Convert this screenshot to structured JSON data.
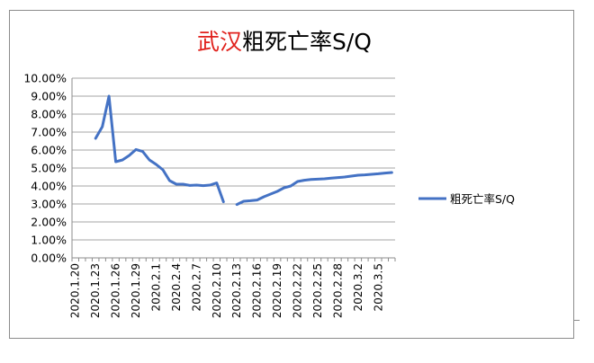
{
  "chart_data": {
    "type": "line",
    "title_red": "武汉",
    "title_rest": "粗死亡率S/Q",
    "xlabel": "",
    "ylabel": "",
    "ylim": [
      0,
      0.1
    ],
    "y_ticks": [
      "0.00%",
      "1.00%",
      "2.00%",
      "3.00%",
      "4.00%",
      "5.00%",
      "6.00%",
      "7.00%",
      "8.00%",
      "9.00%",
      "10.00%"
    ],
    "x_tick_labels": [
      "2020.1.20",
      "2020.1.23",
      "2020.1.26",
      "2020.1.29",
      "2020.2.1",
      "2020.2.4",
      "2020.2.7",
      "2020.2.10",
      "2020.2.13",
      "2020.2.16",
      "2020.2.19",
      "2020.2.22",
      "2020.2.25",
      "2020.2.28",
      "2020.3.2",
      "2020.3.5"
    ],
    "x_start": "2020-01-20",
    "grid": true,
    "legend_position": "right",
    "series": [
      {
        "name": "粗死亡率S/Q",
        "color": "#4472c4",
        "segments": [
          [
            [
              "2020-01-23",
              0.0665
            ],
            [
              "2020-01-24",
              0.073
            ],
            [
              "2020-01-25",
              0.09
            ],
            [
              "2020-01-26",
              0.0535
            ],
            [
              "2020-01-27",
              0.0545
            ],
            [
              "2020-01-28",
              0.057
            ],
            [
              "2020-01-29",
              0.0603
            ],
            [
              "2020-01-30",
              0.0592
            ],
            [
              "2020-01-31",
              0.0545
            ],
            [
              "2020-02-01",
              0.052
            ],
            [
              "2020-02-02",
              0.049
            ],
            [
              "2020-02-03",
              0.043
            ],
            [
              "2020-02-04",
              0.041
            ],
            [
              "2020-02-05",
              0.041
            ],
            [
              "2020-02-06",
              0.0403
            ],
            [
              "2020-02-07",
              0.0405
            ],
            [
              "2020-02-08",
              0.0402
            ],
            [
              "2020-02-09",
              0.0405
            ],
            [
              "2020-02-10",
              0.0417
            ],
            [
              "2020-02-11",
              0.0312
            ]
          ],
          [
            [
              "2020-02-13",
              0.0297
            ],
            [
              "2020-02-14",
              0.0315
            ],
            [
              "2020-02-15",
              0.0318
            ],
            [
              "2020-02-16",
              0.0322
            ],
            [
              "2020-02-17",
              0.034
            ],
            [
              "2020-02-18",
              0.0355
            ],
            [
              "2020-02-19",
              0.037
            ],
            [
              "2020-02-20",
              0.039
            ],
            [
              "2020-02-21",
              0.04
            ],
            [
              "2020-02-22",
              0.0425
            ],
            [
              "2020-02-23",
              0.0432
            ],
            [
              "2020-02-24",
              0.0436
            ],
            [
              "2020-02-25",
              0.0438
            ],
            [
              "2020-02-26",
              0.044
            ],
            [
              "2020-02-27",
              0.0444
            ],
            [
              "2020-02-28",
              0.0447
            ],
            [
              "2020-02-29",
              0.045
            ],
            [
              "2020-03-01",
              0.0455
            ],
            [
              "2020-03-02",
              0.046
            ],
            [
              "2020-03-03",
              0.0462
            ],
            [
              "2020-03-04",
              0.0465
            ],
            [
              "2020-03-05",
              0.0468
            ],
            [
              "2020-03-06",
              0.0472
            ],
            [
              "2020-03-07",
              0.0475
            ]
          ]
        ]
      }
    ]
  }
}
